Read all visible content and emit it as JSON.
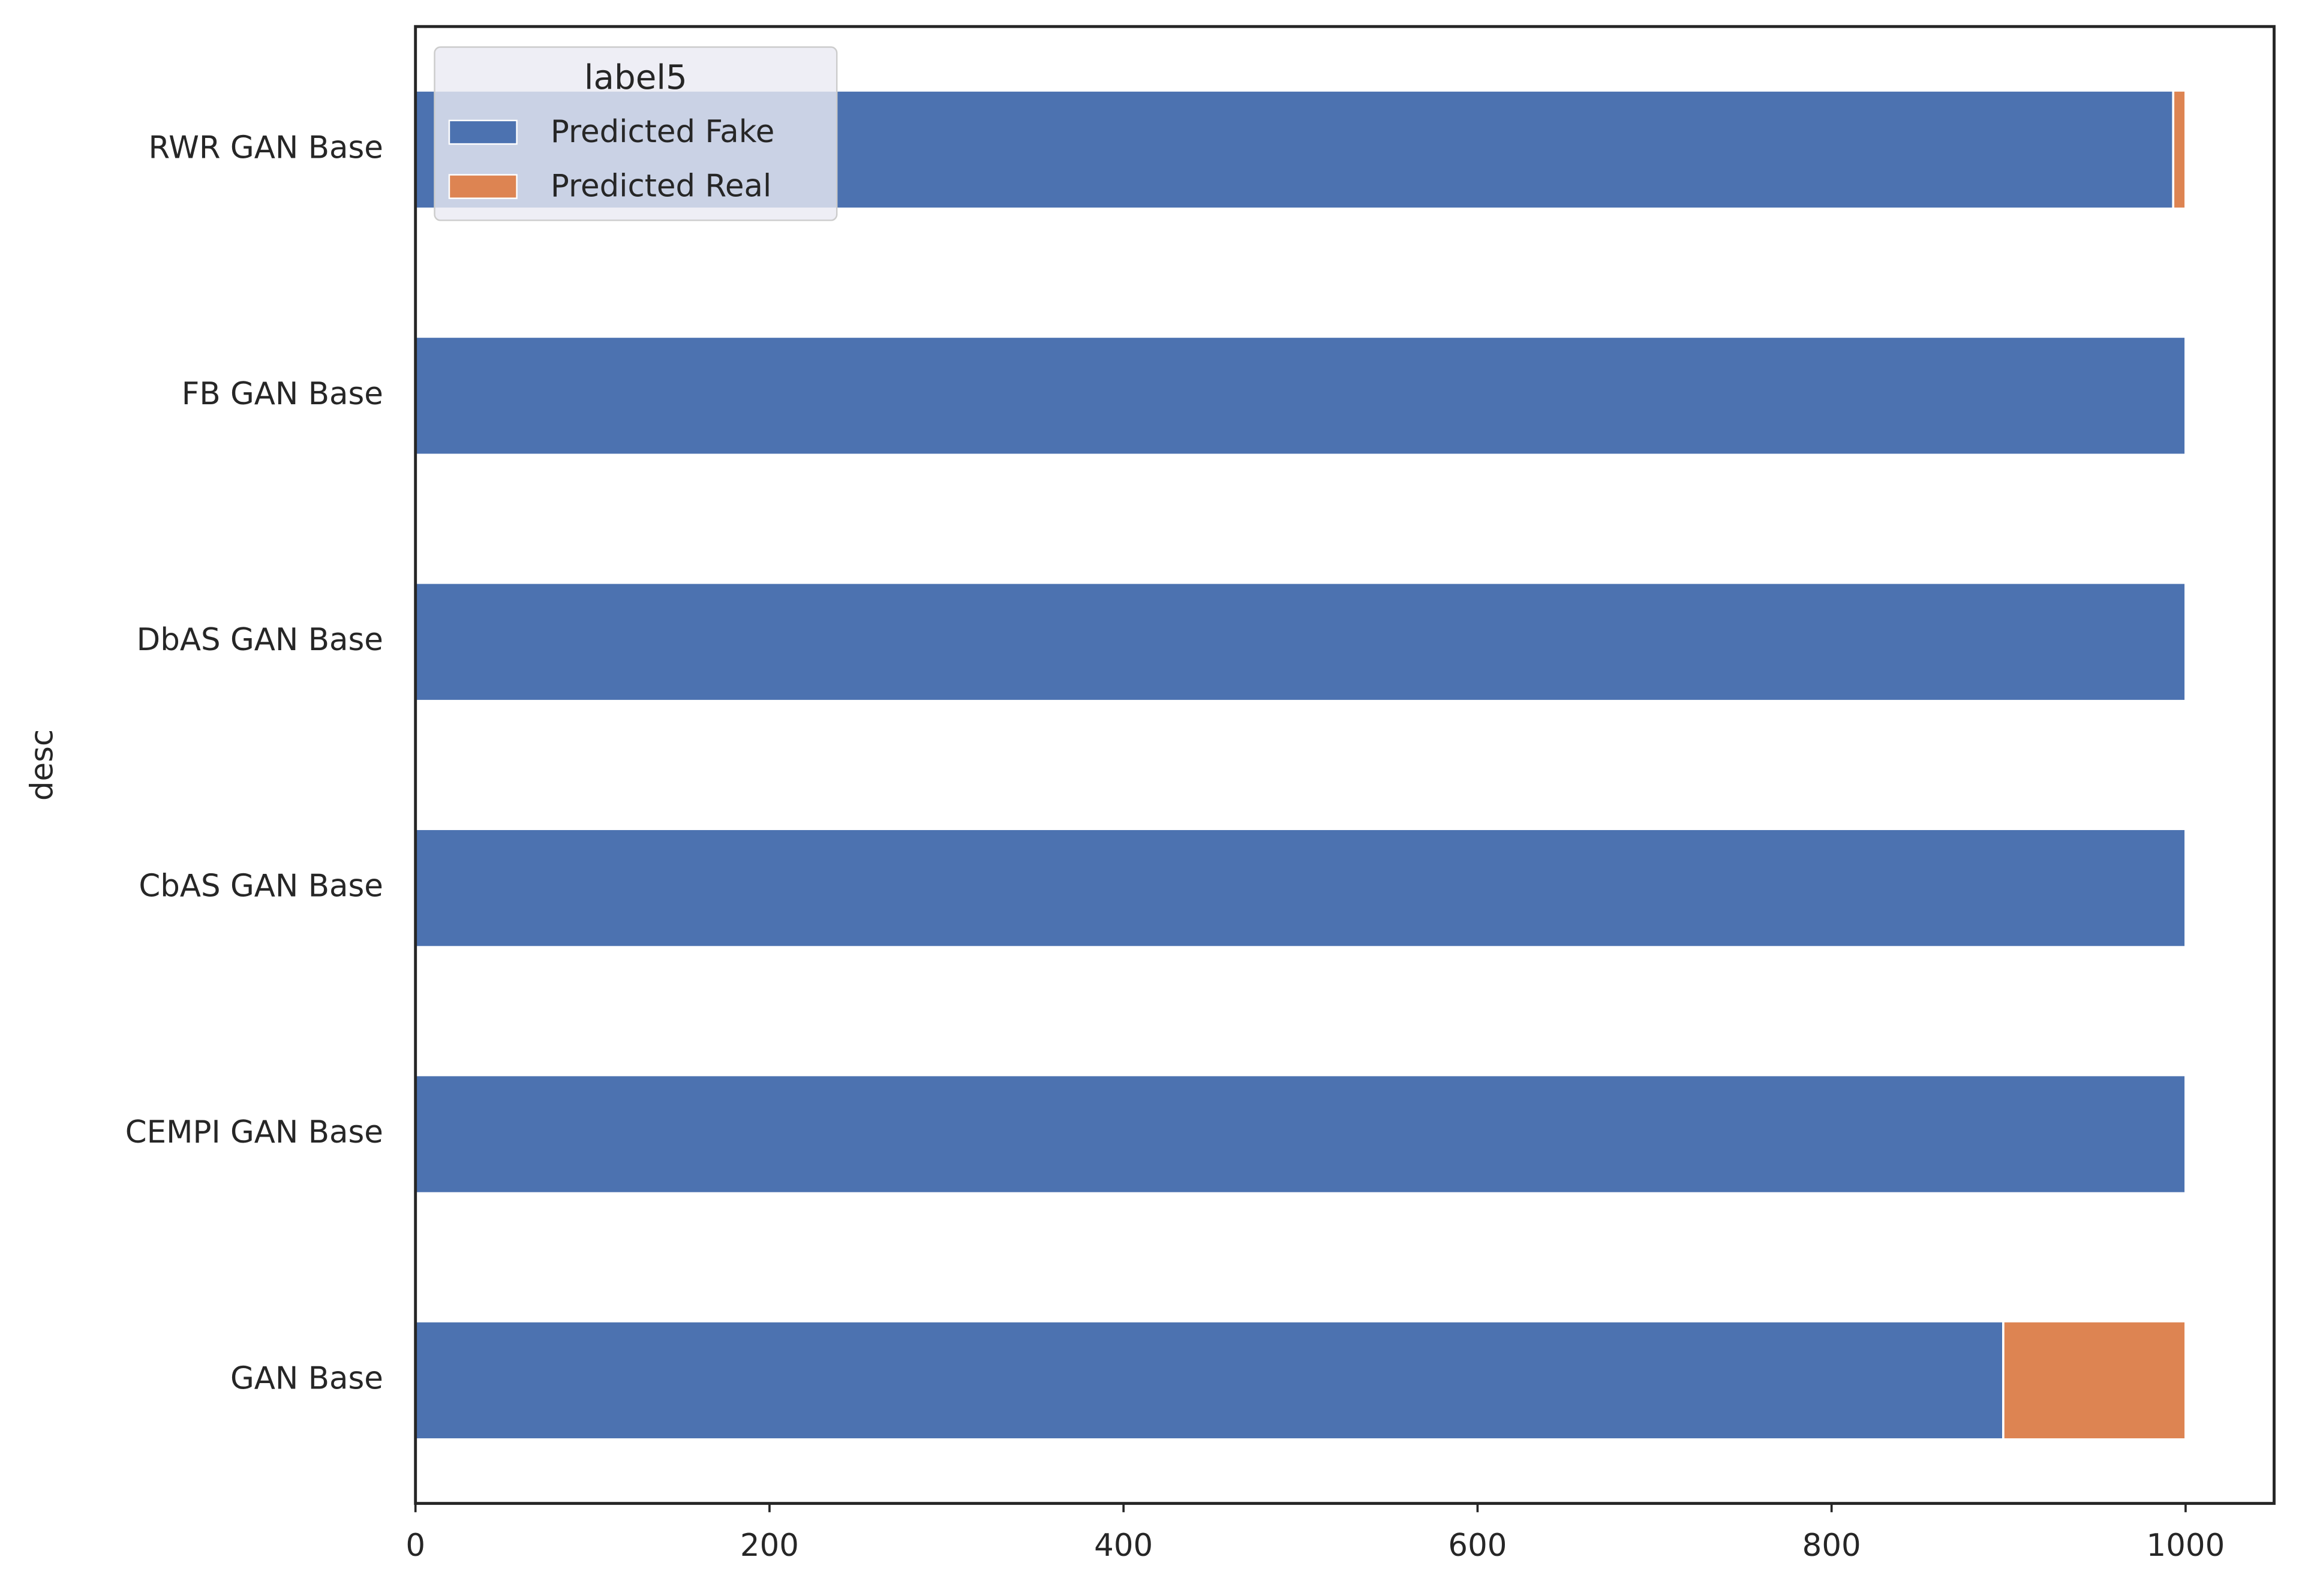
{
  "chart_data": {
    "type": "stacked-barh",
    "y_label": "desc",
    "categories": [
      "RWR GAN Base",
      "FB GAN Base",
      "DbAS GAN Base",
      "CbAS GAN Base",
      "CEMPI GAN Base",
      "GAN Base"
    ],
    "series": [
      {
        "name": "Predicted Fake",
        "color": "#4c72b0",
        "values": [
          993,
          1000,
          1000,
          1000,
          1000,
          897
        ]
      },
      {
        "name": "Predicted Real",
        "color": "#dd8452",
        "values": [
          7,
          0,
          0,
          0,
          0,
          103
        ]
      }
    ],
    "xlim": [
      0,
      1050
    ],
    "xticks": [
      0,
      200,
      400,
      600,
      800,
      1000
    ],
    "legend_title": "label5",
    "legend_position": "upper left",
    "grid": false
  }
}
